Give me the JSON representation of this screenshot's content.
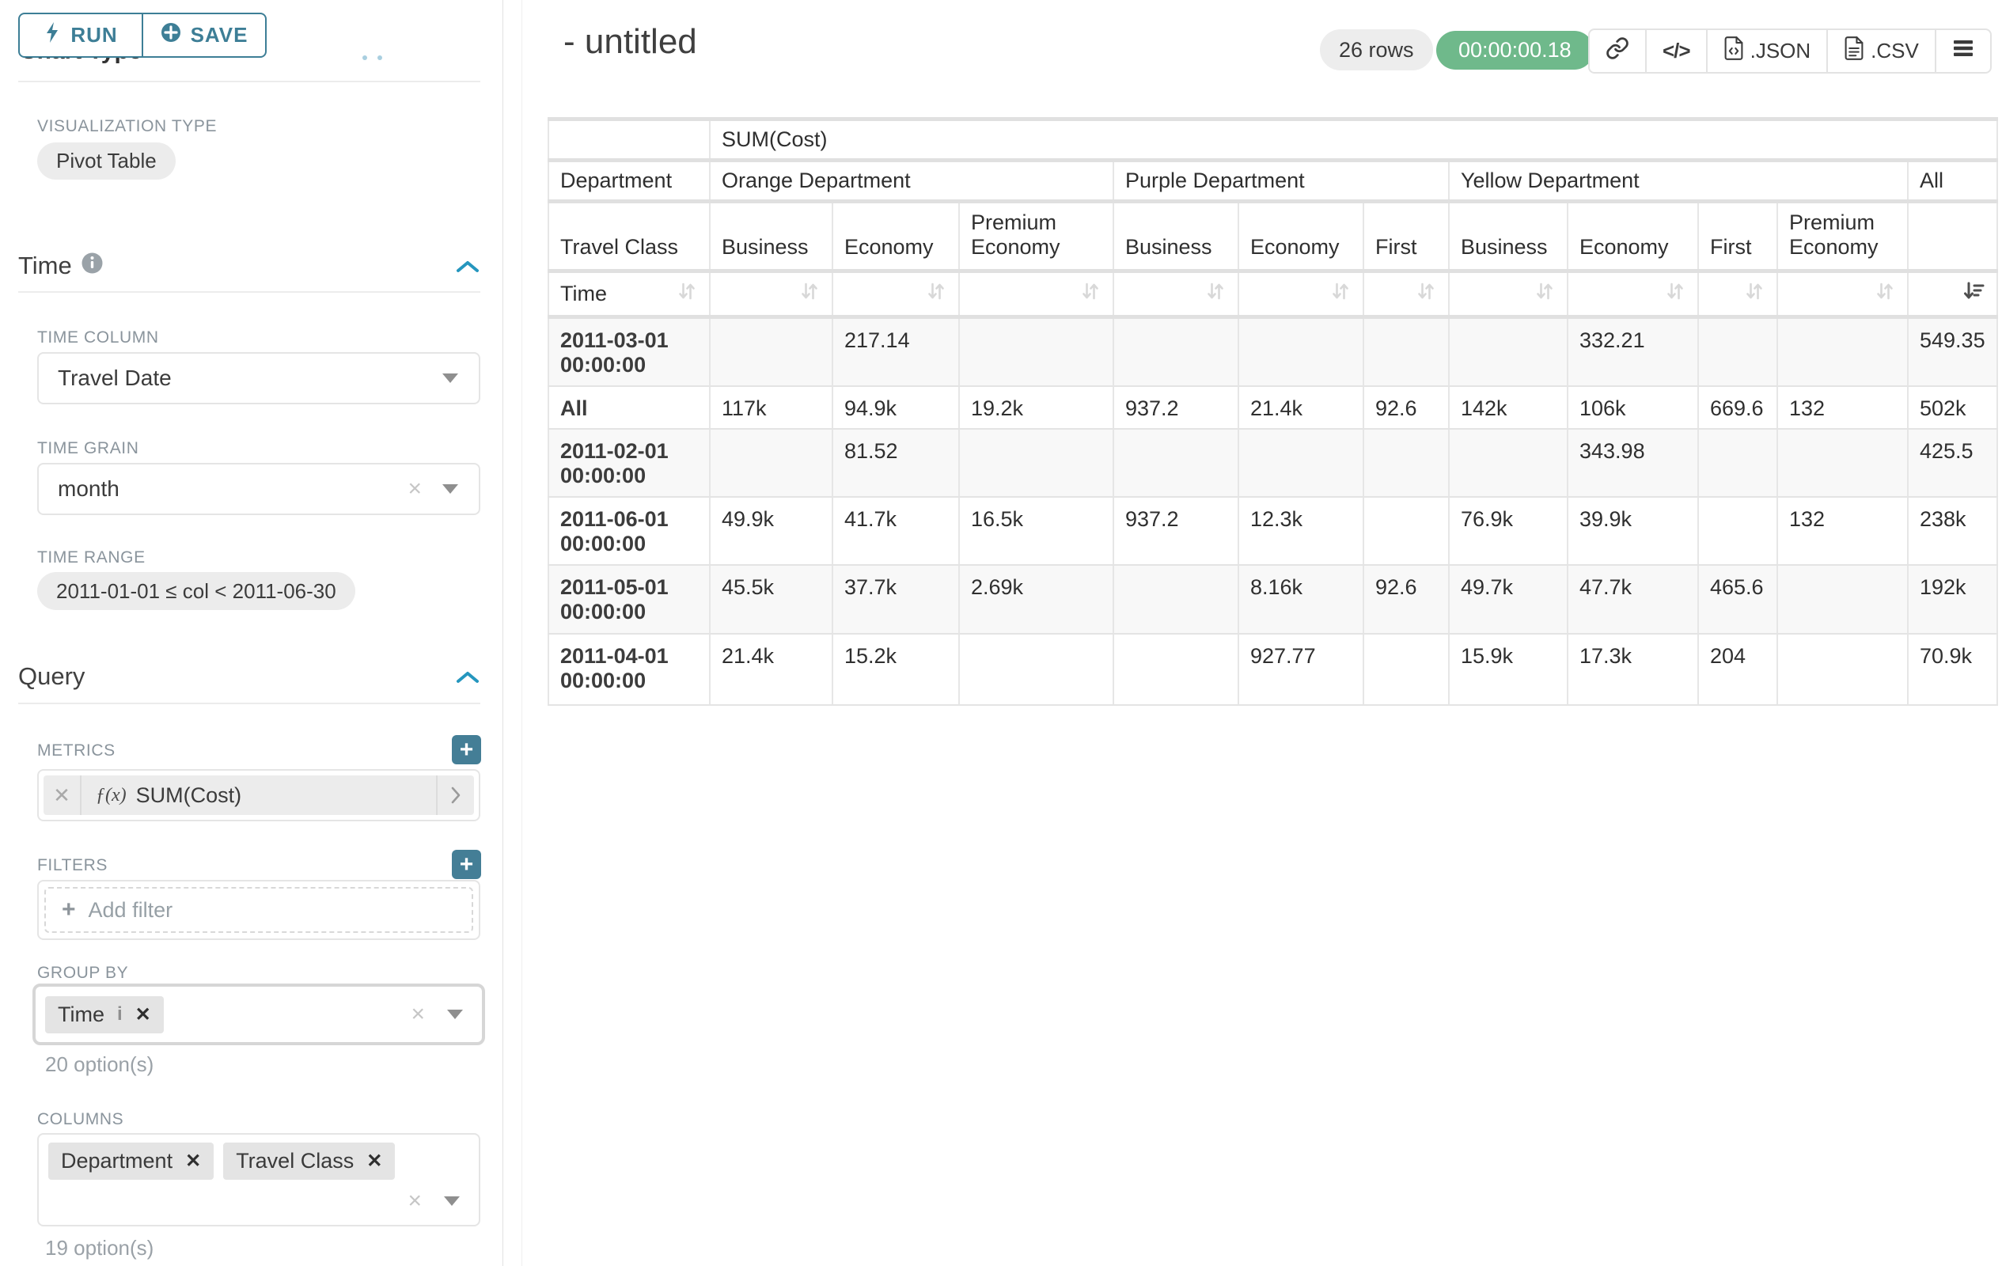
{
  "sidebar": {
    "run_label": "RUN",
    "save_label": "SAVE",
    "clipped_section": "Chart Type",
    "viz_type_label": "VISUALIZATION TYPE",
    "viz_type_value": "Pivot Table",
    "time_section": "Time",
    "time_column_label": "TIME COLUMN",
    "time_column_value": "Travel Date",
    "time_grain_label": "TIME GRAIN",
    "time_grain_value": "month",
    "time_range_label": "TIME RANGE",
    "time_range_value": "2011-01-01 ≤ col < 2011-06-30",
    "query_section": "Query",
    "metrics_label": "METRICS",
    "metric_prefix": "ƒ(x)",
    "metric_value": "SUM(Cost)",
    "filters_label": "FILTERS",
    "add_filter_label": "Add filter",
    "group_by_label": "GROUP BY",
    "group_by_tags": [
      "Time"
    ],
    "group_by_options_note": "20 option(s)",
    "columns_label": "COLUMNS",
    "columns_tags": [
      "Department",
      "Travel Class"
    ],
    "columns_options_note": "19 option(s)"
  },
  "header": {
    "title": "- untitled",
    "row_count": "26 rows",
    "timer": "00:00:00.18",
    "json_label": ".JSON",
    "csv_label": ".CSV"
  },
  "colors": {
    "accent_teal": "#3d7e96",
    "chevron_blue": "#2596be",
    "timer_green": "#6fb98b"
  },
  "table": {
    "metric_header": "SUM(Cost)",
    "corner": {
      "department": "Department",
      "travel_class": "Travel Class",
      "time": "Time"
    },
    "column_groups": [
      {
        "label": "Orange Department",
        "columns": [
          "Business",
          "Economy",
          "Premium Economy"
        ]
      },
      {
        "label": "Purple Department",
        "columns": [
          "Business",
          "Economy",
          "First"
        ]
      },
      {
        "label": "Yellow Department",
        "columns": [
          "Business",
          "Economy",
          "First",
          "Premium Economy"
        ]
      },
      {
        "label": "All",
        "columns": [
          ""
        ]
      }
    ],
    "sorted_column_index": 10,
    "rows": [
      {
        "label": "2011-03-01 00:00:00",
        "values": [
          "",
          "217.14",
          "",
          "",
          "",
          "",
          "",
          "332.21",
          "",
          "",
          "549.35"
        ]
      },
      {
        "label": "All",
        "values": [
          "117k",
          "94.9k",
          "19.2k",
          "937.2",
          "21.4k",
          "92.6",
          "142k",
          "106k",
          "669.6",
          "132",
          "502k"
        ]
      },
      {
        "label": "2011-02-01 00:00:00",
        "values": [
          "",
          "81.52",
          "",
          "",
          "",
          "",
          "",
          "343.98",
          "",
          "",
          "425.5"
        ]
      },
      {
        "label": "2011-06-01 00:00:00",
        "values": [
          "49.9k",
          "41.7k",
          "16.5k",
          "937.2",
          "12.3k",
          "",
          "76.9k",
          "39.9k",
          "",
          "132",
          "238k"
        ]
      },
      {
        "label": "2011-05-01 00:00:00",
        "values": [
          "45.5k",
          "37.7k",
          "2.69k",
          "",
          "8.16k",
          "92.6",
          "49.7k",
          "47.7k",
          "465.6",
          "",
          "192k"
        ]
      },
      {
        "label": "2011-04-01 00:00:00",
        "values": [
          "21.4k",
          "15.2k",
          "",
          "",
          "927.77",
          "",
          "15.9k",
          "17.3k",
          "204",
          "",
          "70.9k"
        ]
      }
    ]
  }
}
